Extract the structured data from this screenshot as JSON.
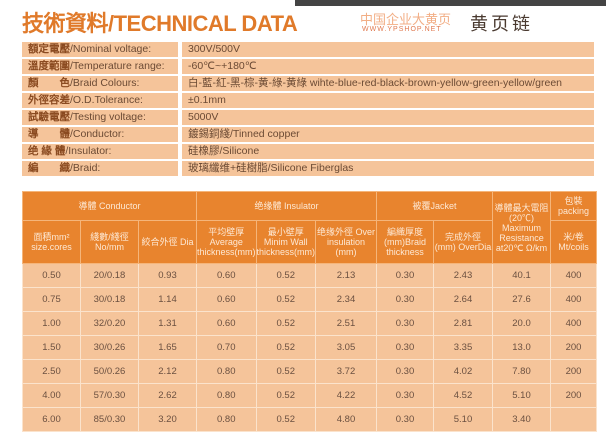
{
  "title": "技術資料/TECHNICAL DATA",
  "specs": [
    {
      "k_cn": "額定電壓",
      "k_en": "/Nominal voltage:",
      "v": "300V/500V"
    },
    {
      "k_cn": "溫度範圍",
      "k_en": "/Temperature range:",
      "v": "-60℃~+180℃"
    },
    {
      "k_cn": "顏　　色",
      "k_en": "/Braid Colours:",
      "v": "白-藍-紅-黑-棕-黄-綠-黄綠 wihte-blue-red-black-brown-yellow-green-yellow/green"
    },
    {
      "k_cn": "外徑容差",
      "k_en": "/O.D.Tolerance:",
      "v": "±0.1mm"
    },
    {
      "k_cn": "試驗電壓",
      "k_en": "/Testing voltage:",
      "v": "5000V"
    },
    {
      "k_cn": "導　　體",
      "k_en": "/Conductor:",
      "v": "鍍錫銅綫/Tinned copper"
    },
    {
      "k_cn": "绝 緣 體",
      "k_en": "/Insulator:",
      "v": "硅橡膠/Silicone"
    },
    {
      "k_cn": "編　　織",
      "k_en": "/Braid:",
      "v": "玻璃纖维+硅樹脂/Silicone Fiberglas"
    }
  ],
  "table": {
    "groups": [
      "導體 Conductor",
      "绝缘體 Insulator",
      "被覆Jacket",
      "導體最大電阻 (20℃) Maximum Resistance at20℃ Ω/km",
      "包裝 packing"
    ],
    "subheaders": [
      "面積mm² size.cores",
      "綫數/綫徑 No/mm",
      "絞合外徑 Dia",
      "平均壁厚 Average thickness(mm)",
      "最小壁厚 Minim Wall thickness(mm)",
      "绝缘外徑 Over insulation (mm)",
      "編織厚度 (mm)Braid thickness",
      "完成外徑 (mm) OverDia",
      "米/卷 Mt/coils"
    ],
    "rows": [
      [
        "0.50",
        "20/0.18",
        "0.93",
        "0.60",
        "0.52",
        "2.13",
        "0.30",
        "2.43",
        "40.1",
        "400"
      ],
      [
        "0.75",
        "30/0.18",
        "1.14",
        "0.60",
        "0.52",
        "2.34",
        "0.30",
        "2.64",
        "27.6",
        "400"
      ],
      [
        "1.00",
        "32/0.20",
        "1.31",
        "0.60",
        "0.52",
        "2.51",
        "0.30",
        "2.81",
        "20.0",
        "400"
      ],
      [
        "1.50",
        "30/0.26",
        "1.65",
        "0.70",
        "0.52",
        "3.05",
        "0.30",
        "3.35",
        "13.0",
        "200"
      ],
      [
        "2.50",
        "50/0.26",
        "2.12",
        "0.80",
        "0.52",
        "3.72",
        "0.30",
        "4.02",
        "7.80",
        "200"
      ],
      [
        "4.00",
        "57/0.30",
        "2.62",
        "0.80",
        "0.52",
        "4.22",
        "0.30",
        "4.52",
        "5.10",
        "200"
      ],
      [
        "6.00",
        "85/0.30",
        "3.20",
        "0.80",
        "0.52",
        "4.80",
        "0.30",
        "5.10",
        "3.40",
        ""
      ]
    ]
  },
  "watermark": {
    "line1": "中国企业大黄页",
    "line2": "WWW.YPSHOP.NET",
    "line3": "黄页链"
  }
}
